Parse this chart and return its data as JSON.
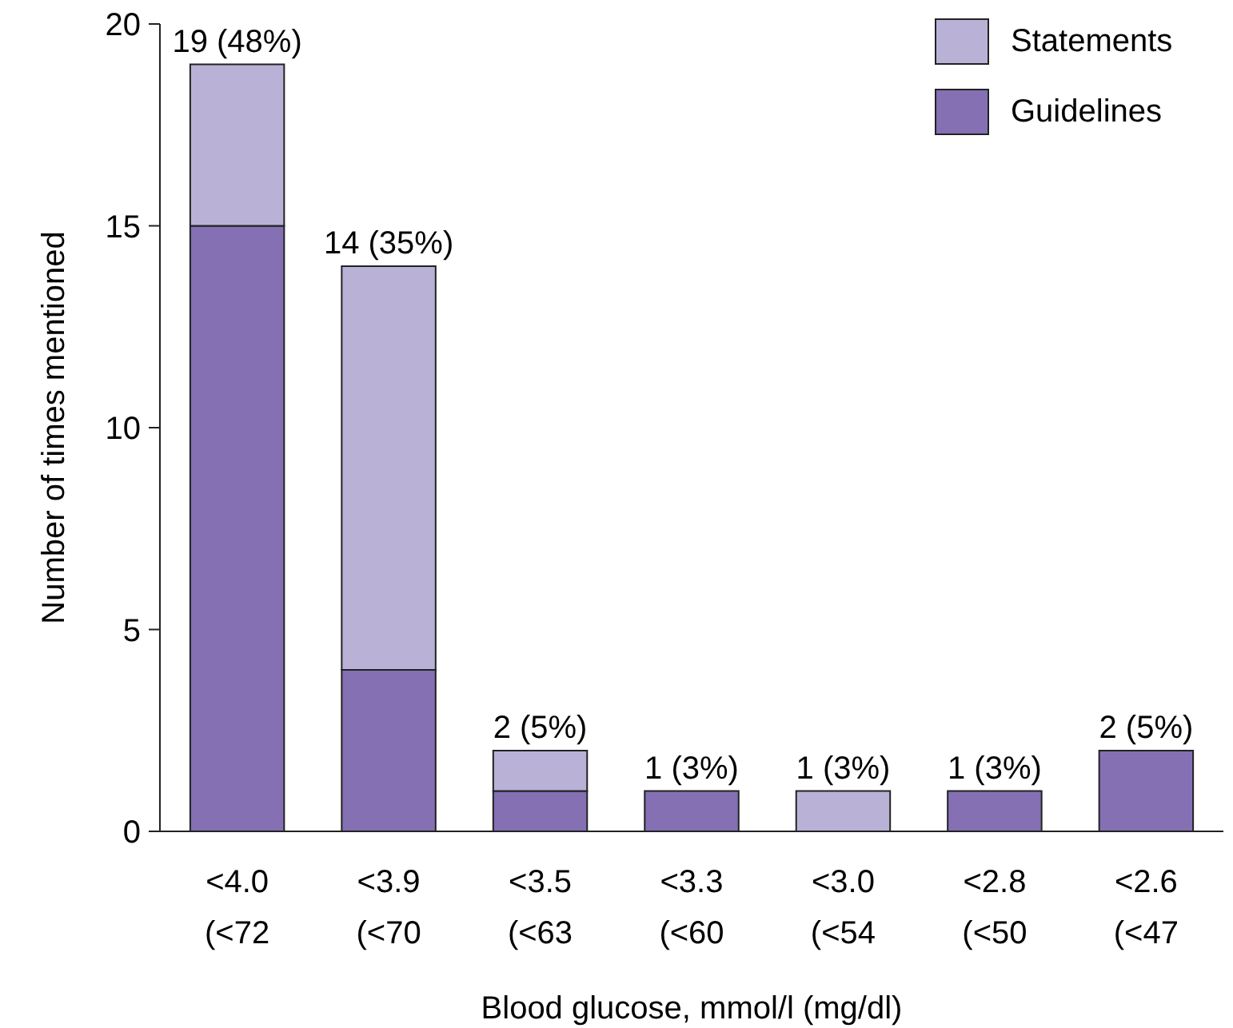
{
  "chart_data": {
    "type": "bar",
    "stacked": true,
    "xlabel": "Blood glucose, mmol/l (mg/dl)",
    "ylabel": "Number of times mentioned",
    "categories": [
      "<4.0\n(<72",
      "<3.9\n(<70",
      "<3.5\n(<63",
      "<3.3\n(<60",
      "<3.0\n(<54",
      "<2.8\n(<50",
      "<2.6\n(<47"
    ],
    "series": [
      {
        "name": "Guidelines",
        "color": "#8470b3",
        "values": [
          15,
          4,
          1,
          1,
          0,
          1,
          2
        ]
      },
      {
        "name": "Statements",
        "color": "#b9b2d6",
        "values": [
          4,
          10,
          1,
          0,
          1,
          0,
          0
        ]
      }
    ],
    "totals": [
      "19 (48%)",
      "14 (35%)",
      "2 (5%)",
      "1 (3%)",
      "1 (3%)",
      "1 (3%)",
      "2 (5%)"
    ],
    "ylim": [
      0,
      20
    ],
    "yticks": [
      0,
      5,
      10,
      15,
      20
    ],
    "grid": false,
    "legend": "top right"
  }
}
